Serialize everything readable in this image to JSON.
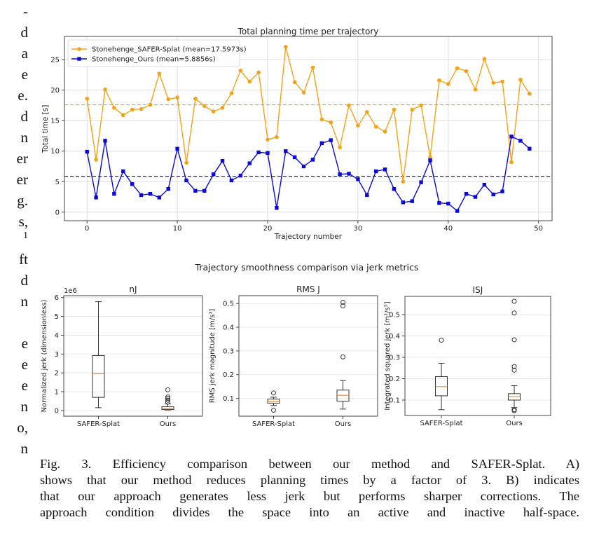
{
  "margin_fragments": [
    "-",
    "d",
    "a",
    "e",
    "e.",
    "d",
    "n",
    "er",
    "er",
    "g.",
    "s,",
    "1",
    "ft",
    "d",
    "n",
    "",
    "e",
    "e",
    "e",
    "n",
    "o,",
    "n"
  ],
  "caption": {
    "lines": [
      "Fig. 3.   Efficiency comparison between our method and SAFER-Splat. A)",
      "shows that our method reduces planning times by a factor of 3. B) indicates",
      "that our approach generates less jerk but performs sharper corrections. The",
      "approach condition divides the space into an active and inactive half-space."
    ]
  },
  "colors": {
    "safer": "#f5a316",
    "ours": "#0a0ad6",
    "median": "#f08c2a",
    "axis": "#444444",
    "grid": "#dddddd"
  },
  "chart_data": [
    {
      "type": "line",
      "title": "Total planning time per trajectory",
      "xlabel": "Trajectory number",
      "ylabel": "Total time [s]",
      "xlim": [
        -2.5,
        51.5
      ],
      "ylim": [
        -1.4,
        28.8
      ],
      "xticks": [
        0,
        10,
        20,
        30,
        40,
        50
      ],
      "yticks": [
        0,
        5,
        10,
        15,
        20,
        25
      ],
      "grid": true,
      "legend_position": "top-left",
      "x": [
        0,
        1,
        2,
        3,
        4,
        5,
        6,
        7,
        8,
        9,
        10,
        11,
        12,
        13,
        14,
        15,
        16,
        17,
        18,
        19,
        20,
        21,
        22,
        23,
        24,
        25,
        26,
        27,
        28,
        29,
        30,
        31,
        32,
        33,
        34,
        35,
        36,
        37,
        38,
        39,
        40,
        41,
        42,
        43,
        44,
        45,
        46,
        47,
        48,
        49
      ],
      "series": [
        {
          "name": "Stonehenge_SAFER-Splat (mean=17.5973s)",
          "color_key": "safer",
          "marker": "circle",
          "mean": 17.5973,
          "values": [
            18.6,
            8.6,
            20.1,
            17.1,
            15.9,
            16.8,
            16.9,
            17.6,
            22.7,
            18.5,
            18.8,
            8.1,
            18.6,
            17.4,
            16.5,
            17.1,
            19.5,
            23.2,
            21.4,
            22.9,
            11.9,
            12.3,
            27.1,
            21.3,
            19.6,
            23.7,
            15.2,
            14.7,
            10.6,
            17.5,
            14.2,
            16.4,
            14.0,
            13.2,
            16.8,
            5.0,
            16.8,
            17.5,
            9.0,
            21.6,
            21.0,
            23.6,
            23.1,
            20.1,
            25.1,
            21.2,
            21.4,
            8.2,
            21.7,
            19.4
          ]
        },
        {
          "name": "Stonehenge_Ours (mean=5.8856s)",
          "color_key": "ours",
          "marker": "square",
          "mean": 5.8856,
          "values": [
            9.9,
            2.4,
            11.7,
            3.0,
            6.7,
            4.6,
            2.8,
            3.0,
            2.4,
            3.8,
            10.4,
            5.2,
            3.5,
            3.5,
            6.2,
            8.4,
            5.2,
            6.0,
            8.0,
            9.8,
            9.7,
            0.7,
            10.0,
            9.0,
            7.5,
            8.6,
            11.3,
            11.8,
            6.2,
            6.3,
            5.4,
            2.8,
            6.7,
            7.0,
            3.8,
            1.6,
            1.8,
            4.9,
            8.5,
            1.5,
            1.4,
            0.2,
            3.0,
            2.5,
            4.5,
            2.9,
            3.4,
            12.4,
            11.7,
            10.4
          ]
        }
      ]
    },
    {
      "type": "box",
      "suptitle": "Trajectory smoothness comparison via jerk metrics",
      "panels": [
        {
          "title": "nJ",
          "ylabel": "Normalized jerk (dimensionless)",
          "offset_label": "1e6",
          "ylim": [
            -0.3,
            6.1
          ],
          "yticks": [
            0,
            1,
            2,
            3,
            4,
            5,
            6
          ],
          "ytick_labels": [
            "0",
            "1",
            "2",
            "3",
            "4",
            "5",
            "6"
          ],
          "categories": [
            "SAFER-Splat",
            "Ours"
          ],
          "boxes": [
            {
              "whislo": 0.15,
              "q1": 0.7,
              "med": 1.95,
              "q3": 2.92,
              "whishi": 5.78,
              "fliers": []
            },
            {
              "whislo": 0.03,
              "q1": 0.05,
              "med": 0.1,
              "q3": 0.2,
              "whishi": 0.35,
              "fliers": [
                0.45,
                0.55,
                0.65,
                0.72,
                1.1
              ]
            }
          ]
        },
        {
          "title": "RMS J",
          "ylabel": "RMS jerk magnitude [m/s³]",
          "offset_label": "",
          "ylim": [
            0.025,
            0.533
          ],
          "yticks": [
            0.1,
            0.2,
            0.3,
            0.4,
            0.5
          ],
          "ytick_labels": [
            "0.1",
            "0.2",
            "0.3",
            "0.4",
            "0.5"
          ],
          "categories": [
            "SAFER-Splat",
            "Ours"
          ],
          "boxes": [
            {
              "whislo": 0.07,
              "q1": 0.08,
              "med": 0.087,
              "q3": 0.097,
              "whishi": 0.105,
              "fliers": [
                0.123,
                0.05
              ]
            },
            {
              "whislo": 0.055,
              "q1": 0.088,
              "med": 0.113,
              "q3": 0.135,
              "whishi": 0.175,
              "fliers": [
                0.275,
                0.49,
                0.505
              ]
            }
          ]
        },
        {
          "title": "ISJ",
          "ylabel": "Integrated squared jerk [m²/s⁵]",
          "offset_label": "",
          "ylim": [
            0.028,
            0.585
          ],
          "yticks": [
            0.1,
            0.2,
            0.3,
            0.4,
            0.5
          ],
          "ytick_labels": [
            "0.1",
            "0.2",
            "0.3",
            "0.4",
            "0.5"
          ],
          "categories": [
            "SAFER-Splat",
            "Ours"
          ],
          "boxes": [
            {
              "whislo": 0.055,
              "q1": 0.12,
              "med": 0.163,
              "q3": 0.21,
              "whishi": 0.272,
              "fliers": [
                0.38
              ]
            },
            {
              "whislo": 0.065,
              "q1": 0.1,
              "med": 0.117,
              "q3": 0.13,
              "whishi": 0.167,
              "fliers": [
                0.05,
                0.055,
                0.24,
                0.257,
                0.382,
                0.507,
                0.562
              ]
            }
          ]
        }
      ]
    }
  ]
}
